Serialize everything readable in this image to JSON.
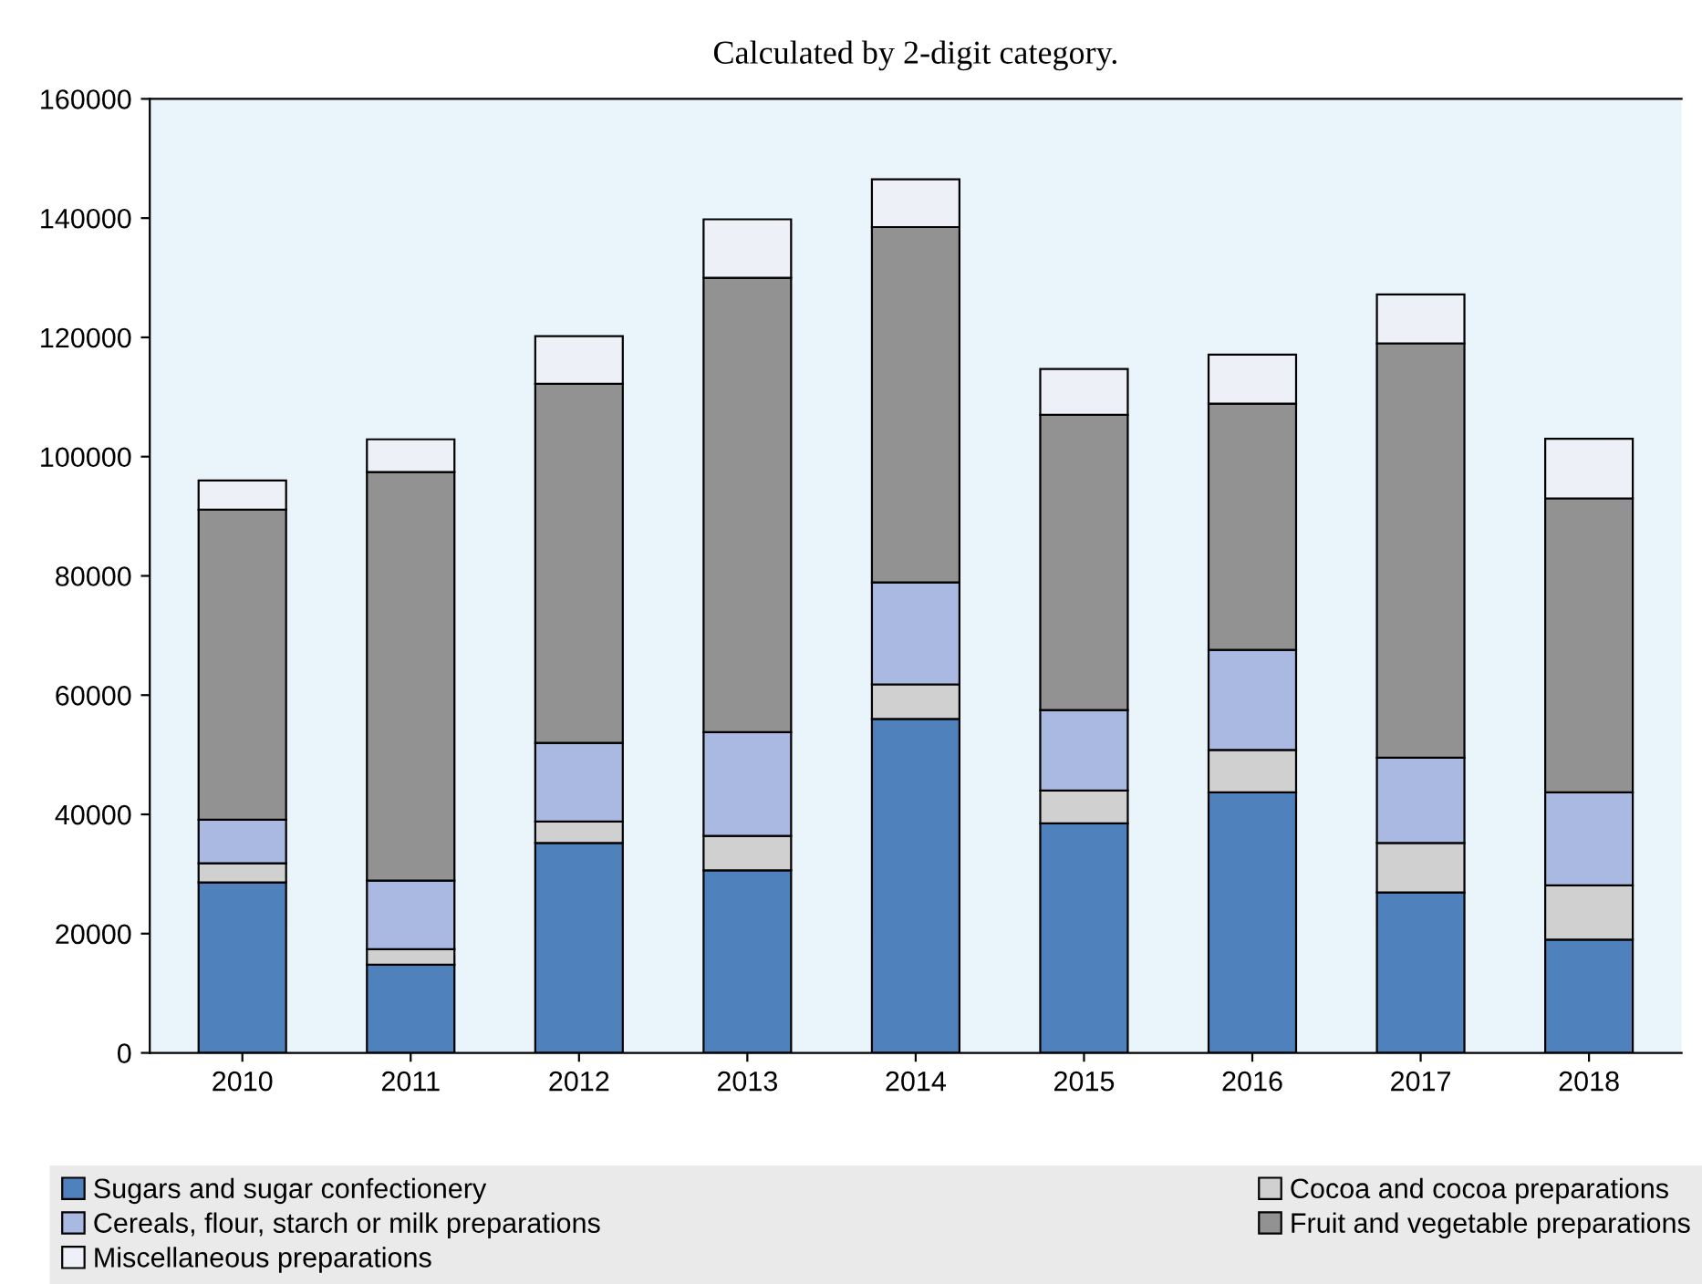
{
  "chart_data": {
    "type": "bar",
    "stacked": true,
    "title": "Calculated by 2-digit category.",
    "categories": [
      "2010",
      "2011",
      "2012",
      "2013",
      "2014",
      "2015",
      "2016",
      "2017",
      "2018"
    ],
    "series": [
      {
        "name": "Sugars and sugar confectionery",
        "color": "#4f81bd",
        "values": [
          28600,
          14800,
          35200,
          30600,
          56000,
          38500,
          43700,
          26900,
          19000
        ]
      },
      {
        "name": "Cocoa and cocoa preparations",
        "color": "#d0d0d0",
        "values": [
          3200,
          2600,
          3600,
          5800,
          5800,
          5500,
          7100,
          8300,
          9100
        ]
      },
      {
        "name": "Cereals, flour, starch or milk preparations",
        "color": "#a9b9e2",
        "values": [
          7300,
          11500,
          13200,
          17400,
          17100,
          13500,
          16800,
          14300,
          15600
        ]
      },
      {
        "name": "Fruit and vegetable preparations",
        "color": "#929292",
        "values": [
          52000,
          68500,
          60200,
          76200,
          59600,
          49500,
          41300,
          69500,
          49300
        ]
      },
      {
        "name": "Miscellaneous preparations",
        "color": "#eef0f8",
        "values": [
          4900,
          5500,
          8000,
          9800,
          8000,
          7700,
          8200,
          8200,
          10000
        ]
      }
    ],
    "ylim": [
      0,
      160000
    ],
    "yticks": [
      0,
      20000,
      40000,
      60000,
      80000,
      100000,
      120000,
      140000,
      160000
    ],
    "grid": false,
    "legend": "bottom"
  }
}
